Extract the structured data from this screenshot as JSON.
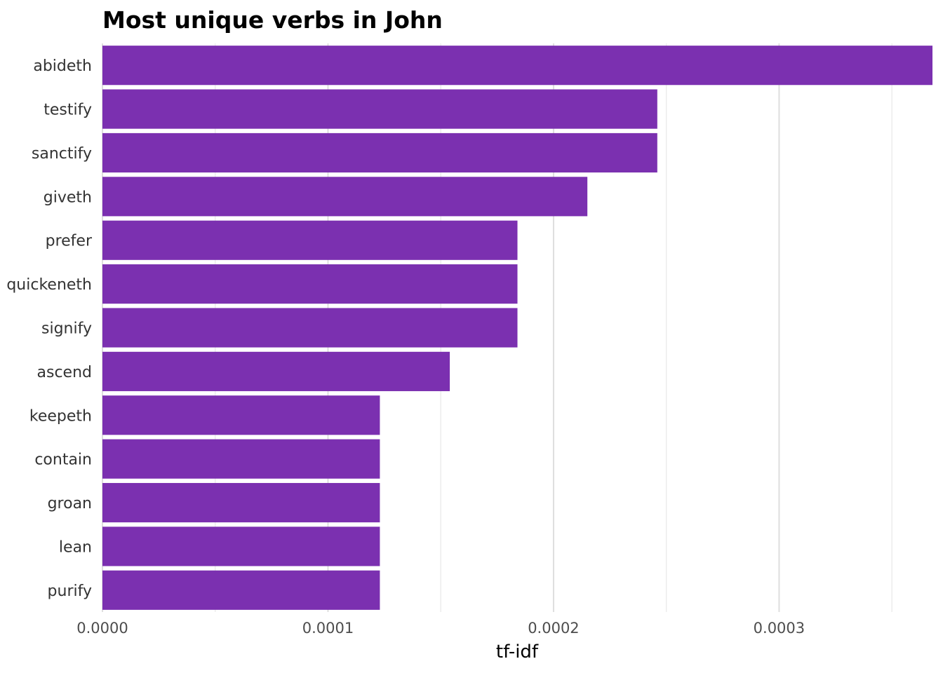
{
  "chart_data": {
    "type": "bar",
    "orientation": "horizontal",
    "title": "Most unique verbs in John",
    "xlabel": "tf-idf",
    "ylabel": "",
    "categories": [
      "abideth",
      "testify",
      "sanctify",
      "giveth",
      "prefer",
      "quickeneth",
      "signify",
      "ascend",
      "keepeth",
      "contain",
      "groan",
      "lean",
      "purify"
    ],
    "values": [
      0.000368,
      0.000246,
      0.000246,
      0.000215,
      0.000184,
      0.000184,
      0.000184,
      0.000154,
      0.000123,
      0.000123,
      0.000123,
      0.000123,
      0.000123
    ],
    "xlim": [
      0,
      0.000368
    ],
    "x_ticks": [
      0,
      0.0001,
      0.0002,
      0.0003
    ],
    "x_tick_labels": [
      "0.0000",
      "0.0001",
      "0.0002",
      "0.0003"
    ],
    "x_minor_ticks": [
      5e-05,
      0.00015,
      0.00025,
      0.00035
    ],
    "bar_color": "#7b30b0",
    "grid": "vertical",
    "legend": "none"
  }
}
